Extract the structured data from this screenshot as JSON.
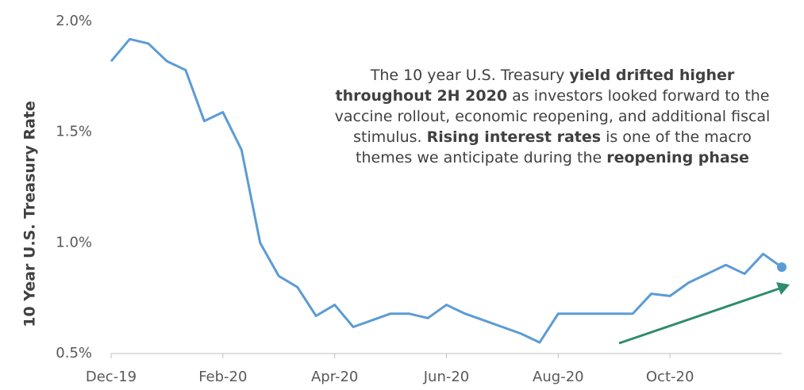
{
  "chart_data": {
    "type": "line",
    "y_label": "10 Year U.S. Treasury Rate",
    "categories": [
      "Dec-19",
      null,
      null,
      null,
      null,
      null,
      "Feb-20",
      null,
      null,
      null,
      null,
      null,
      "Apr-20",
      null,
      null,
      null,
      null,
      null,
      "Jun-20",
      null,
      null,
      null,
      null,
      null,
      "Aug-20",
      null,
      null,
      null,
      null,
      null,
      "Oct-20",
      null,
      null,
      null,
      null,
      null,
      null
    ],
    "values": [
      1.82,
      1.92,
      1.9,
      1.82,
      1.78,
      1.55,
      1.59,
      1.42,
      1.0,
      0.85,
      0.8,
      0.67,
      0.72,
      0.62,
      0.65,
      0.68,
      0.68,
      0.66,
      0.72,
      0.68,
      0.65,
      0.62,
      0.59,
      0.55,
      0.68,
      0.68,
      0.68,
      0.68,
      0.68,
      0.77,
      0.76,
      0.82,
      0.86,
      0.9,
      0.86,
      0.95,
      0.89
    ],
    "color": "#5b9bd5",
    "ylim": [
      0.5,
      2.0
    ],
    "yticks": [
      {
        "value": 0.5,
        "label": "0.5%"
      },
      {
        "value": 1.0,
        "label": "1.0%"
      },
      {
        "value": 1.5,
        "label": "1.5%"
      },
      {
        "value": 2.0,
        "label": "2.0%"
      }
    ],
    "annotation": [
      {
        "text": "The 10 year U.S. Treasury ",
        "bold": false
      },
      {
        "text": "yield drifted higher throughout 2H 2020",
        "bold": true
      },
      {
        "text": " as investors looked forward to the vaccine rollout, economic reopening, and additional fiscal stimulus. ",
        "bold": false
      },
      {
        "text": "Rising interest rates",
        "bold": true
      },
      {
        "text": " is one of the macro themes we anticipate during the ",
        "bold": false
      },
      {
        "text": "reopening phase",
        "bold": true
      }
    ]
  }
}
